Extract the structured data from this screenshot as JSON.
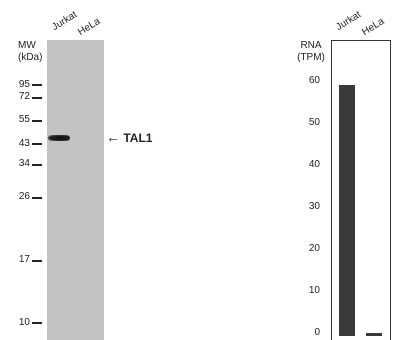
{
  "blot": {
    "mw_header_line1": "MW",
    "mw_header_line2": "(kDa)",
    "lanes": [
      "Jurkat",
      "HeLa"
    ],
    "markers": [
      "95",
      "72",
      "55",
      "43",
      "34",
      "26",
      "17",
      "10"
    ],
    "target_label": "TAL1",
    "arrow_glyph": "←"
  },
  "rna": {
    "header_line1": "RNA",
    "header_line2": "(TPM)",
    "lanes": [
      "Jurkat",
      "HeLa"
    ],
    "ticks": [
      "60",
      "50",
      "40",
      "30",
      "20",
      "10",
      "0"
    ]
  },
  "chart_data": {
    "type": "bar",
    "categories": [
      "Jurkat",
      "HeLa"
    ],
    "values": [
      59,
      0
    ],
    "ylabel": "RNA (TPM)",
    "ylim": [
      0,
      60
    ],
    "grid": false
  }
}
